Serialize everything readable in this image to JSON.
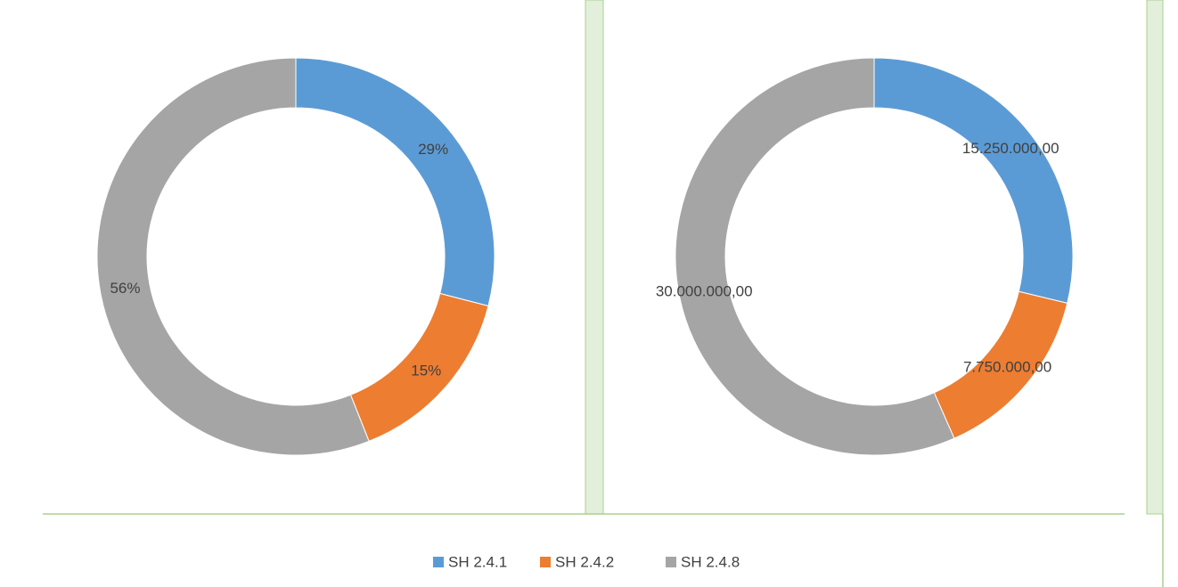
{
  "legend": {
    "names": [
      "SH 2.4.1",
      "SH 2.4.2",
      "SH 2.4.8"
    ],
    "colors": [
      "#5b9bd5",
      "#ed7d31",
      "#a5a5a5"
    ]
  },
  "chart_data": [
    {
      "type": "donut",
      "values": [
        29,
        15,
        56
      ],
      "value_labels": [
        "29%",
        "15%",
        "56%"
      ]
    },
    {
      "type": "donut",
      "values": [
        15250000,
        7750000,
        30000000
      ],
      "value_labels": [
        "15.250.000,00",
        "7.750.000,00",
        "30.000.000,00"
      ]
    }
  ]
}
